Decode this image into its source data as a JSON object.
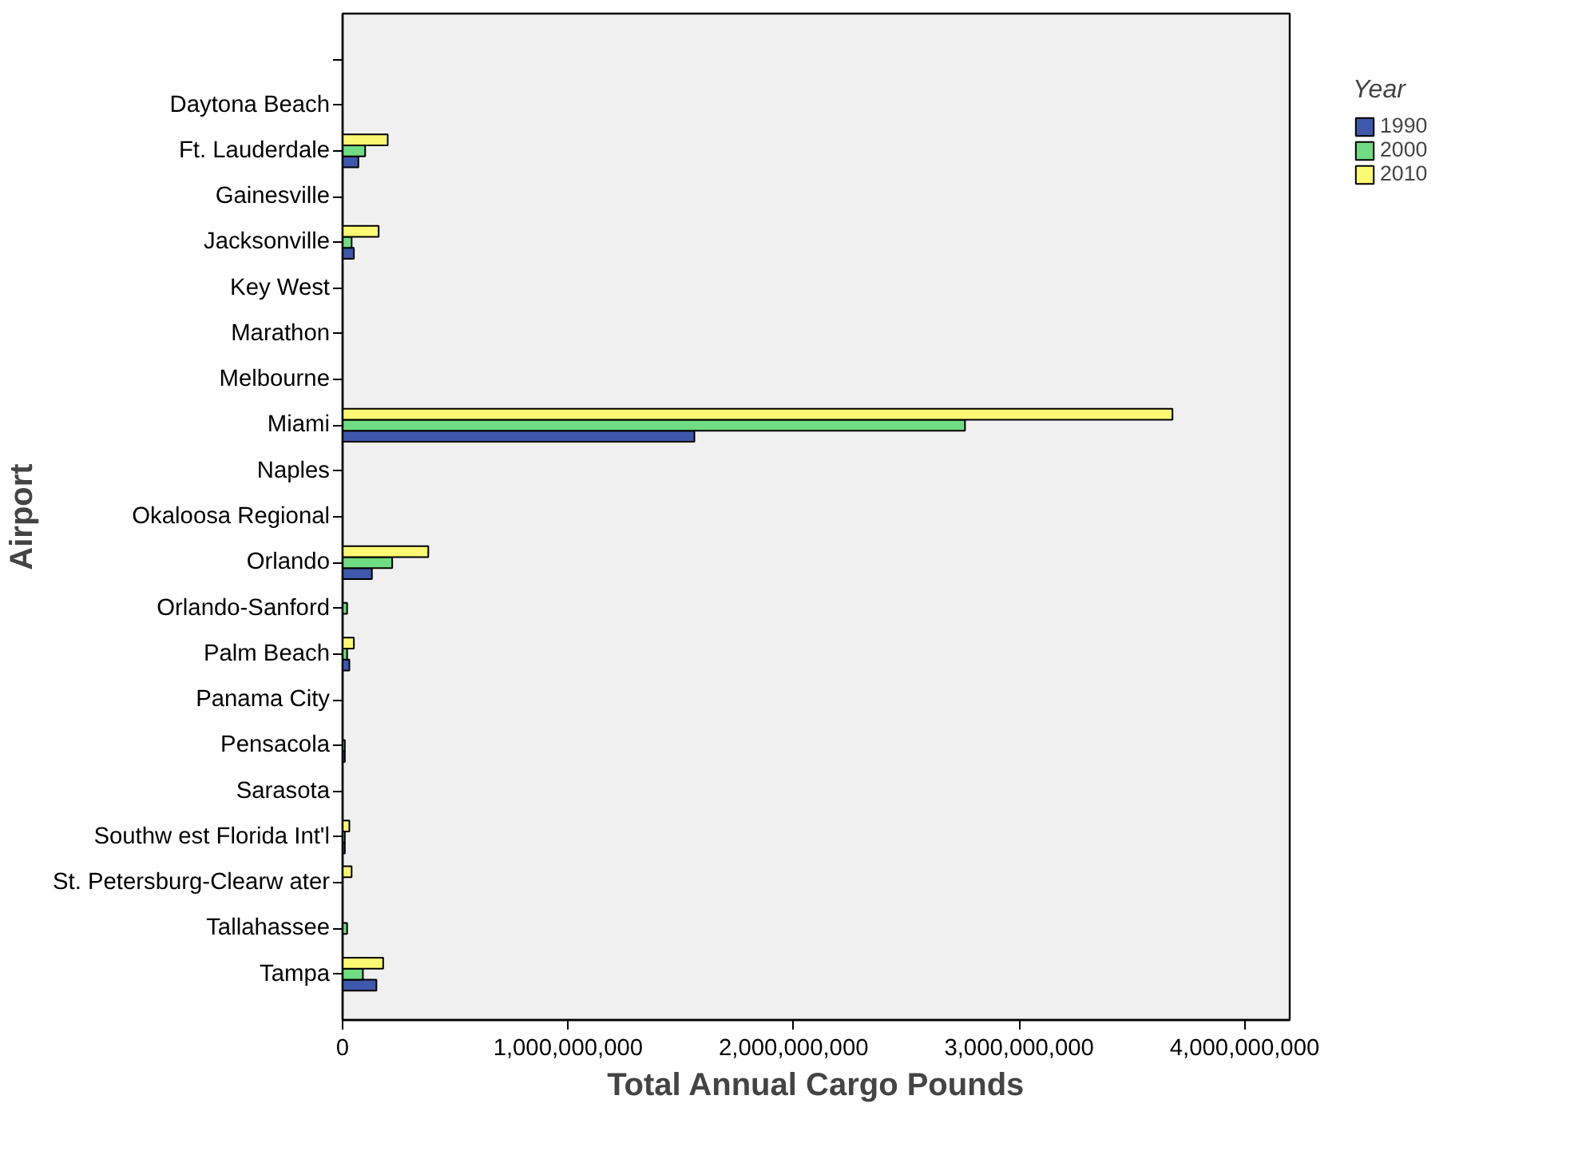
{
  "chart_data": {
    "type": "bar",
    "orientation": "horizontal",
    "xlabel": "Total Annual Cargo Pounds",
    "ylabel": "Airport",
    "legend_title": "Year",
    "legend": "top right",
    "grid": false,
    "categories": [
      null,
      "Daytona Beach",
      "Ft. Lauderdale",
      "Gainesville",
      "Jacksonville",
      "Key West",
      "Marathon",
      "Melbourne",
      "Miami",
      "Naples",
      "Okaloosa Regional",
      "Orlando",
      "Orlando-Sanford",
      "Palm Beach",
      "Panama City",
      "Pensacola",
      "Sarasota",
      "Southw est Florida Int'l",
      "St. Petersburg-Clearw ater",
      "Tallahassee",
      "Tampa"
    ],
    "xlim": [
      0,
      4200000000
    ],
    "xticks": [
      {
        "value": 0,
        "label": "0"
      },
      {
        "value": 1000000000,
        "label": "1,000,000,000"
      },
      {
        "value": 2000000000,
        "label": "2,000,000,000"
      },
      {
        "value": 3000000000,
        "label": "3,000,000,000"
      },
      {
        "value": 4000000000,
        "label": "4,000,000,000"
      }
    ],
    "series": [
      {
        "name": "1990",
        "color": "#3e58ac",
        "values": [
          null,
          null,
          70000000,
          null,
          50000000,
          null,
          null,
          null,
          1560000000,
          null,
          null,
          130000000,
          null,
          30000000,
          null,
          10000000,
          null,
          10000000,
          null,
          null,
          150000000
        ]
      },
      {
        "name": "2000",
        "color": "#70dc83",
        "values": [
          null,
          null,
          100000000,
          null,
          40000000,
          null,
          null,
          null,
          2760000000,
          null,
          null,
          220000000,
          20000000,
          20000000,
          null,
          10000000,
          null,
          10000000,
          null,
          20000000,
          90000000
        ]
      },
      {
        "name": "2010",
        "color": "#fbf873",
        "values": [
          null,
          null,
          200000000,
          null,
          160000000,
          null,
          null,
          null,
          3680000000,
          null,
          null,
          380000000,
          null,
          50000000,
          null,
          null,
          null,
          30000000,
          40000000,
          null,
          180000000
        ]
      }
    ]
  }
}
